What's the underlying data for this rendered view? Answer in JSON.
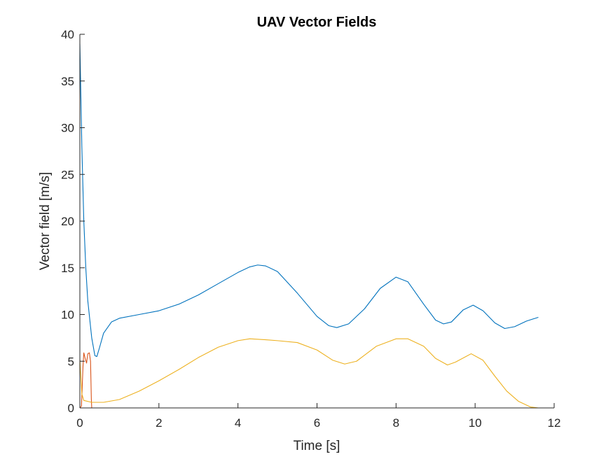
{
  "chart_data": {
    "type": "line",
    "title": "UAV Vector Fields",
    "xlabel": "Time [s]",
    "ylabel": "Vector field [m/s]",
    "xlim": [
      0,
      12
    ],
    "ylim": [
      0,
      40
    ],
    "xticks": [
      0,
      2,
      4,
      6,
      8,
      10,
      12
    ],
    "yticks": [
      0,
      5,
      10,
      15,
      20,
      25,
      30,
      35,
      40
    ],
    "grid": false,
    "series": [
      {
        "color": "#0072BD",
        "points": [
          [
            0.0,
            39.0
          ],
          [
            0.05,
            28.0
          ],
          [
            0.1,
            20.0
          ],
          [
            0.15,
            15.0
          ],
          [
            0.2,
            11.5
          ],
          [
            0.3,
            7.5
          ],
          [
            0.38,
            5.6
          ],
          [
            0.43,
            5.5
          ],
          [
            0.5,
            6.5
          ],
          [
            0.6,
            8.0
          ],
          [
            0.8,
            9.2
          ],
          [
            1.0,
            9.6
          ],
          [
            1.5,
            10.0
          ],
          [
            2.0,
            10.4
          ],
          [
            2.5,
            11.1
          ],
          [
            3.0,
            12.1
          ],
          [
            3.5,
            13.3
          ],
          [
            4.0,
            14.5
          ],
          [
            4.3,
            15.1
          ],
          [
            4.5,
            15.3
          ],
          [
            4.7,
            15.2
          ],
          [
            5.0,
            14.6
          ],
          [
            5.5,
            12.3
          ],
          [
            6.0,
            9.8
          ],
          [
            6.3,
            8.8
          ],
          [
            6.5,
            8.6
          ],
          [
            6.8,
            9.0
          ],
          [
            7.2,
            10.6
          ],
          [
            7.6,
            12.8
          ],
          [
            8.0,
            14.0
          ],
          [
            8.3,
            13.5
          ],
          [
            8.7,
            11.1
          ],
          [
            9.0,
            9.4
          ],
          [
            9.2,
            9.0
          ],
          [
            9.4,
            9.2
          ],
          [
            9.7,
            10.5
          ],
          [
            9.95,
            11.0
          ],
          [
            10.2,
            10.4
          ],
          [
            10.5,
            9.1
          ],
          [
            10.75,
            8.5
          ],
          [
            11.0,
            8.7
          ],
          [
            11.3,
            9.3
          ],
          [
            11.6,
            9.7
          ]
        ]
      },
      {
        "color": "#D95319",
        "points": [
          [
            0.0,
            0.0
          ],
          [
            0.04,
            0.2
          ],
          [
            0.08,
            4.5
          ],
          [
            0.1,
            5.9
          ],
          [
            0.14,
            5.2
          ],
          [
            0.17,
            4.8
          ],
          [
            0.2,
            5.8
          ],
          [
            0.24,
            5.9
          ],
          [
            0.27,
            5.0
          ],
          [
            0.29,
            1.0
          ],
          [
            0.3,
            0.0
          ],
          [
            1.0,
            0.0
          ],
          [
            4.0,
            0.0
          ],
          [
            8.0,
            0.0
          ],
          [
            11.6,
            0.0
          ]
        ]
      },
      {
        "color": "#EDB120",
        "points": [
          [
            0.0,
            5.2
          ],
          [
            0.05,
            1.5
          ],
          [
            0.1,
            0.8
          ],
          [
            0.3,
            0.6
          ],
          [
            0.6,
            0.6
          ],
          [
            1.0,
            0.9
          ],
          [
            1.5,
            1.8
          ],
          [
            2.0,
            2.9
          ],
          [
            2.5,
            4.1
          ],
          [
            3.0,
            5.4
          ],
          [
            3.5,
            6.5
          ],
          [
            4.0,
            7.2
          ],
          [
            4.3,
            7.4
          ],
          [
            4.7,
            7.3
          ],
          [
            5.0,
            7.2
          ],
          [
            5.5,
            7.0
          ],
          [
            6.0,
            6.2
          ],
          [
            6.4,
            5.1
          ],
          [
            6.7,
            4.7
          ],
          [
            7.0,
            5.0
          ],
          [
            7.5,
            6.6
          ],
          [
            8.0,
            7.4
          ],
          [
            8.3,
            7.4
          ],
          [
            8.7,
            6.6
          ],
          [
            9.0,
            5.3
          ],
          [
            9.3,
            4.6
          ],
          [
            9.5,
            4.9
          ],
          [
            9.9,
            5.8
          ],
          [
            10.2,
            5.1
          ],
          [
            10.5,
            3.4
          ],
          [
            10.8,
            1.8
          ],
          [
            11.1,
            0.7
          ],
          [
            11.4,
            0.1
          ],
          [
            11.6,
            0.0
          ]
        ]
      }
    ]
  }
}
